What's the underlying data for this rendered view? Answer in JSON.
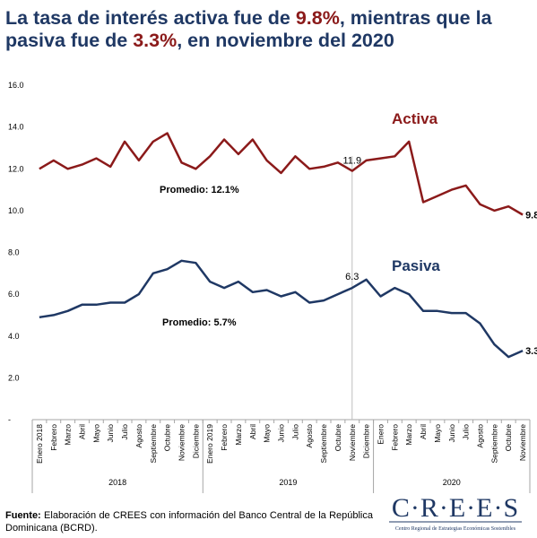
{
  "header": {
    "title_part1": "La tasa de interés activa fue de ",
    "title_activa_value": "9.8%",
    "title_part2": ", mientras que la pasiva fue de ",
    "title_pasiva_value": "3.3%",
    "title_part3": ", en noviembre del 2020"
  },
  "footer": {
    "source_label": "Fuente:",
    "source_text": " Elaboración de CREES con información del Banco Central de la República Dominicana (BCRD)."
  },
  "logo": {
    "name": "CREES",
    "subtitle": "Centro Regional de Estrategias Económicas Sostenibles"
  },
  "colors": {
    "activa": "#8b1a1a",
    "pasiva": "#1f3864",
    "title": "#1f3864",
    "marker_line": "#bfbfbf"
  },
  "chart_data": {
    "type": "line",
    "x": [
      "Enero 2018",
      "Febrero",
      "Marzo",
      "Abril",
      "Mayo",
      "Junio",
      "Julio",
      "Agosto",
      "Septiembre",
      "Octubre",
      "Noviembre",
      "Diciembre",
      "Enero 2019",
      "Febrero",
      "Marzo",
      "Abril",
      "Mayo",
      "Junio",
      "Julio",
      "Agosto",
      "Septiembre",
      "Octubre",
      "Noviembre",
      "Diciembre",
      "Enero",
      "Febrero",
      "Marzo",
      "Abril",
      "Mayo",
      "Junio",
      "Julio",
      "Agosto",
      "Septiembre",
      "Octubre",
      "Noviembre"
    ],
    "year_groups": [
      {
        "label": "2018",
        "start": 0,
        "end": 11
      },
      {
        "label": "2019",
        "start": 12,
        "end": 23
      },
      {
        "label": "2020",
        "start": 24,
        "end": 34
      }
    ],
    "y_ticks": [
      "-",
      "2.0",
      "4.0",
      "6.0",
      "8.0",
      "10.0",
      "12.0",
      "14.0",
      "16.0"
    ],
    "ylim": [
      0,
      16
    ],
    "series": [
      {
        "name": "Activa",
        "color": "#8b1a1a",
        "values": [
          12.0,
          12.4,
          12.0,
          12.2,
          12.5,
          12.1,
          13.3,
          12.4,
          13.3,
          13.7,
          12.3,
          12.0,
          12.6,
          13.4,
          12.7,
          13.4,
          12.4,
          11.8,
          12.6,
          12.0,
          12.1,
          12.3,
          11.9,
          12.4,
          12.5,
          12.6,
          13.3,
          10.4,
          10.7,
          11.0,
          11.2,
          10.3,
          10.0,
          10.2,
          9.8
        ],
        "average_label": "Promedio: 12.1%",
        "annotation_label": "11.9",
        "end_label": "9.8"
      },
      {
        "name": "Pasiva",
        "color": "#1f3864",
        "values": [
          4.9,
          5.0,
          5.2,
          5.5,
          5.5,
          5.6,
          5.6,
          6.0,
          7.0,
          7.2,
          7.6,
          7.5,
          6.6,
          6.3,
          6.6,
          6.1,
          6.2,
          5.9,
          6.1,
          5.6,
          5.7,
          6.0,
          6.3,
          6.7,
          5.9,
          6.3,
          6.0,
          5.2,
          5.2,
          5.1,
          5.1,
          4.6,
          3.6,
          3.0,
          3.3
        ],
        "average_label": "Promedio: 5.7%",
        "annotation_label": "6.3",
        "end_label": "3.3"
      }
    ],
    "highlight_index": 22,
    "grid": false,
    "legend": "inline labels"
  }
}
